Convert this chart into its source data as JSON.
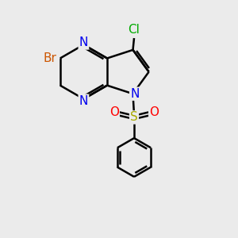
{
  "bg_color": "#ebebeb",
  "bond_color": "#000000",
  "N_color": "#0000ee",
  "Br_color": "#cc5500",
  "Cl_color": "#00aa00",
  "S_color": "#aaaa00",
  "O_color": "#ff0000",
  "bond_width": 1.8,
  "figsize": [
    3.0,
    3.0
  ],
  "dpi": 100,
  "xlim": [
    0,
    10
  ],
  "ylim": [
    0,
    10
  ]
}
